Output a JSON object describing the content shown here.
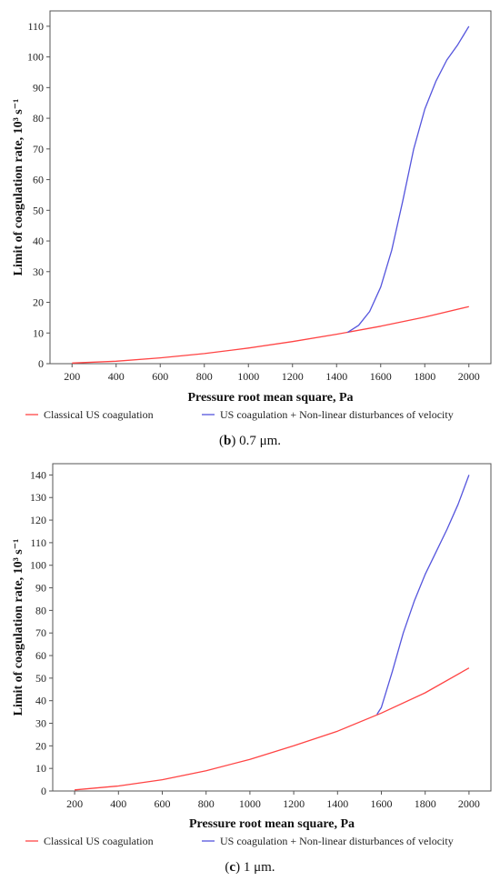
{
  "chart_data": [
    {
      "type": "line",
      "xlabel": "Pressure root mean square, Pa",
      "ylabel": "Limit of coagulation rate, 10³ s⁻¹",
      "xlim": [
        100,
        2100
      ],
      "ylim": [
        0,
        115
      ],
      "xticks": [
        200,
        400,
        600,
        800,
        1000,
        1200,
        1400,
        1600,
        1800,
        2000
      ],
      "yticks": [
        0,
        10,
        20,
        30,
        40,
        50,
        60,
        70,
        80,
        90,
        100,
        110
      ],
      "grid": false,
      "legend_position": "bottom",
      "caption_label": "b",
      "caption_text": "0.7 μm.",
      "series": [
        {
          "name": "Classical US coagulation",
          "color": "#ff4444",
          "x": [
            200,
            400,
            600,
            800,
            1000,
            1200,
            1400,
            1600,
            1800,
            2000
          ],
          "y": [
            0.2,
            0.8,
            1.9,
            3.3,
            5.1,
            7.2,
            9.6,
            12.2,
            15.2,
            18.6
          ]
        },
        {
          "name": "US coagulation + Non-linear disturbances of velocity",
          "color": "#5555dd",
          "x": [
            1450,
            1500,
            1550,
            1600,
            1650,
            1700,
            1750,
            1800,
            1850,
            1900,
            1950,
            2000
          ],
          "y": [
            10.2,
            12.5,
            17,
            25,
            37,
            53,
            70,
            83,
            92,
            99,
            104,
            110
          ]
        }
      ]
    },
    {
      "type": "line",
      "xlabel": "Pressure root mean square, Pa",
      "ylabel": "Limit of coagulation rate, 10³ s⁻¹",
      "xlim": [
        100,
        2100
      ],
      "ylim": [
        0,
        145
      ],
      "xticks": [
        200,
        400,
        600,
        800,
        1000,
        1200,
        1400,
        1600,
        1800,
        2000
      ],
      "yticks": [
        0,
        10,
        20,
        30,
        40,
        50,
        60,
        70,
        80,
        90,
        100,
        110,
        120,
        130,
        140
      ],
      "grid": false,
      "legend_position": "bottom",
      "caption_label": "c",
      "caption_text": "1 μm.",
      "series": [
        {
          "name": "Classical US coagulation",
          "color": "#ff4444",
          "x": [
            200,
            400,
            600,
            800,
            1000,
            1200,
            1400,
            1600,
            1800,
            2000
          ],
          "y": [
            0.5,
            2.2,
            5.0,
            9.0,
            14.0,
            20.0,
            26.5,
            34.5,
            43.5,
            54.5
          ]
        },
        {
          "name": "US coagulation + Non-linear disturbances of velocity",
          "color": "#5555dd",
          "x": [
            1580,
            1600,
            1650,
            1700,
            1750,
            1800,
            1850,
            1900,
            1950,
            2000
          ],
          "y": [
            34,
            37,
            53,
            70,
            84,
            96,
            106,
            116,
            127,
            140
          ]
        }
      ]
    }
  ]
}
